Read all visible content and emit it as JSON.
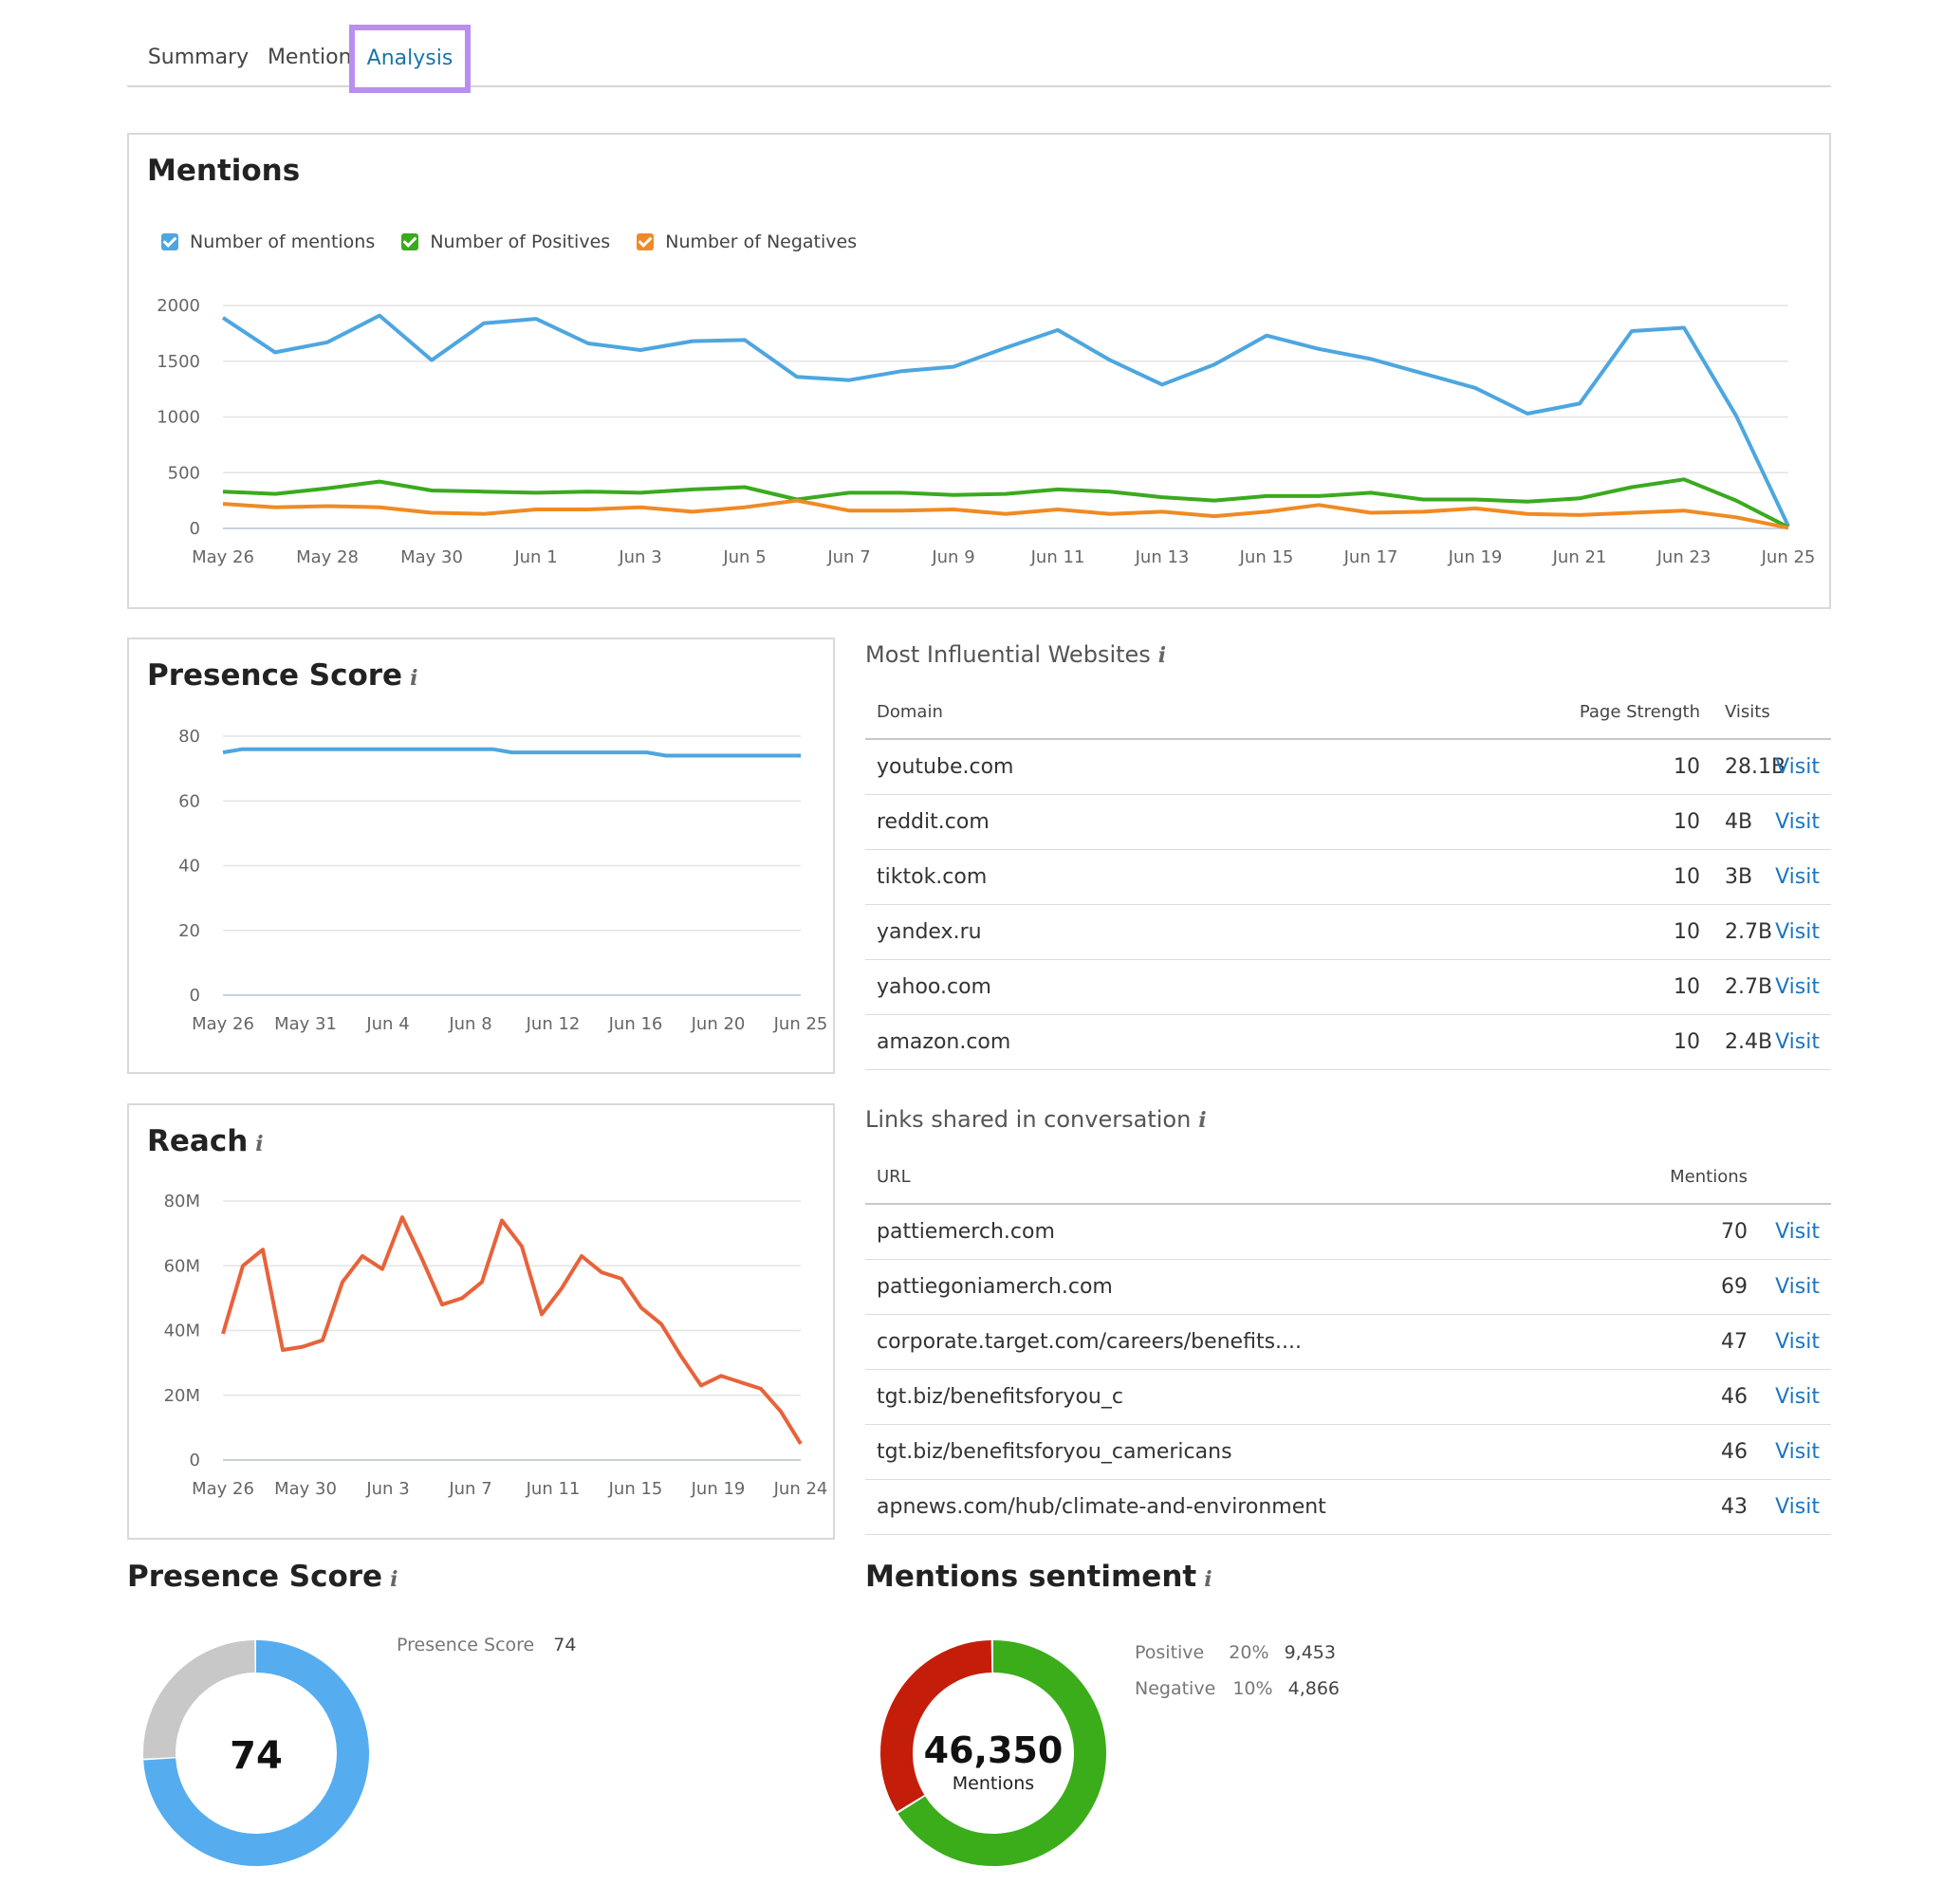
{
  "tabs": [
    {
      "label": "Summary"
    },
    {
      "label": "Mentions"
    },
    {
      "label": "Analysis",
      "active": true
    }
  ],
  "mentions_chart": {
    "title": "Mentions",
    "legend": [
      {
        "label": "Number of mentions",
        "color": "#4da6e0"
      },
      {
        "label": "Number of Positives",
        "color": "#3aaa1e"
      },
      {
        "label": "Number of Negatives",
        "color": "#f08a24"
      }
    ]
  },
  "presence_chart": {
    "title": "Presence Score"
  },
  "reach_chart": {
    "title": "Reach"
  },
  "influential": {
    "title": "Most Influential Websites",
    "headers": {
      "domain": "Domain",
      "strength": "Page Strength",
      "visits": "Visits"
    },
    "rows": [
      {
        "domain": "youtube.com",
        "strength": "10",
        "visits": "28.1B",
        "action": "Visit"
      },
      {
        "domain": "reddit.com",
        "strength": "10",
        "visits": "4B",
        "action": "Visit"
      },
      {
        "domain": "tiktok.com",
        "strength": "10",
        "visits": "3B",
        "action": "Visit"
      },
      {
        "domain": "yandex.ru",
        "strength": "10",
        "visits": "2.7B",
        "action": "Visit"
      },
      {
        "domain": "yahoo.com",
        "strength": "10",
        "visits": "2.7B",
        "action": "Visit"
      },
      {
        "domain": "amazon.com",
        "strength": "10",
        "visits": "2.4B",
        "action": "Visit"
      }
    ]
  },
  "links": {
    "title": "Links shared in conversation",
    "headers": {
      "url": "URL",
      "mentions": "Mentions"
    },
    "rows": [
      {
        "url": "pattiemerch.com",
        "mentions": "70",
        "action": "Visit"
      },
      {
        "url": "pattiegoniamerch.com",
        "mentions": "69",
        "action": "Visit"
      },
      {
        "url": "corporate.target.com/careers/benefits....",
        "mentions": "47",
        "action": "Visit"
      },
      {
        "url": "tgt.biz/benefitsforyou_c",
        "mentions": "46",
        "action": "Visit"
      },
      {
        "url": "tgt.biz/benefitsforyou_camericans",
        "mentions": "46",
        "action": "Visit"
      },
      {
        "url": "apnews.com/hub/climate-and-environment",
        "mentions": "43",
        "action": "Visit"
      }
    ]
  },
  "presence_donut": {
    "title": "Presence Score",
    "label": "Presence Score",
    "value": "74",
    "score": 74,
    "max": 100,
    "colors": {
      "fill": "#55adf0",
      "rest": "#c8c8c8"
    }
  },
  "sentiment": {
    "title": "Mentions sentiment",
    "total": "46,350",
    "total_label": "Mentions",
    "positive": {
      "label": "Positive",
      "pct": "20%",
      "count": "9,453",
      "value": 9453,
      "color": "#3bad1a"
    },
    "negative": {
      "label": "Negative",
      "pct": "10%",
      "count": "4,866",
      "value": 4866,
      "color": "#c41e0a"
    }
  },
  "chart_data": [
    {
      "type": "line",
      "title": "Mentions",
      "x": [
        "May 26",
        "May 27",
        "May 28",
        "May 29",
        "May 30",
        "May 31",
        "Jun 1",
        "Jun 2",
        "Jun 3",
        "Jun 4",
        "Jun 5",
        "Jun 6",
        "Jun 7",
        "Jun 8",
        "Jun 9",
        "Jun 10",
        "Jun 11",
        "Jun 12",
        "Jun 13",
        "Jun 14",
        "Jun 15",
        "Jun 16",
        "Jun 17",
        "Jun 18",
        "Jun 19",
        "Jun 20",
        "Jun 21",
        "Jun 22",
        "Jun 23",
        "Jun 24",
        "Jun 25"
      ],
      "x_ticks": [
        "May 26",
        "May 28",
        "May 30",
        "Jun 1",
        "Jun 3",
        "Jun 5",
        "Jun 7",
        "Jun 9",
        "Jun 11",
        "Jun 13",
        "Jun 15",
        "Jun 17",
        "Jun 19",
        "Jun 21",
        "Jun 23",
        "Jun 25"
      ],
      "ylim": [
        0,
        2000
      ],
      "y_ticks": [
        "0",
        "500",
        "1000",
        "1500",
        "2000"
      ],
      "grid": true,
      "series": [
        {
          "name": "Number of mentions",
          "color": "#4da6e0",
          "values": [
            1890,
            1580,
            1670,
            1910,
            1510,
            1840,
            1880,
            1660,
            1600,
            1680,
            1690,
            1360,
            1330,
            1410,
            1450,
            1620,
            1780,
            1510,
            1290,
            1470,
            1730,
            1610,
            1520,
            1390,
            1260,
            1030,
            1120,
            1770,
            1800,
            1010,
            20
          ]
        },
        {
          "name": "Number of Positives",
          "color": "#3aaa1e",
          "values": [
            330,
            310,
            360,
            420,
            340,
            330,
            320,
            330,
            320,
            350,
            370,
            260,
            320,
            320,
            300,
            310,
            350,
            330,
            280,
            250,
            290,
            290,
            320,
            260,
            260,
            240,
            270,
            370,
            440,
            250,
            10
          ]
        },
        {
          "name": "Number of Negatives",
          "color": "#f08a24",
          "values": [
            220,
            190,
            200,
            190,
            140,
            130,
            170,
            170,
            190,
            150,
            190,
            250,
            160,
            160,
            170,
            130,
            170,
            130,
            150,
            110,
            150,
            210,
            140,
            150,
            180,
            130,
            120,
            140,
            160,
            100,
            5
          ]
        }
      ]
    },
    {
      "type": "line",
      "title": "Presence Score",
      "x_ticks": [
        "May 26",
        "May 31",
        "Jun 4",
        "Jun 8",
        "Jun 12",
        "Jun 16",
        "Jun 20",
        "Jun 25"
      ],
      "ylim": [
        0,
        80
      ],
      "y_ticks": [
        "0",
        "20",
        "40",
        "60",
        "80"
      ],
      "grid": true,
      "series": [
        {
          "color": "#4da6e0",
          "values": [
            75,
            76,
            76,
            76,
            76,
            76,
            76,
            76,
            76,
            76,
            76,
            76,
            76,
            76,
            76,
            75,
            75,
            75,
            75,
            75,
            75,
            75,
            75,
            74,
            74,
            74,
            74,
            74,
            74,
            74,
            74
          ]
        }
      ]
    },
    {
      "type": "line",
      "title": "Reach",
      "x_ticks": [
        "May 26",
        "May 30",
        "Jun 3",
        "Jun 7",
        "Jun 11",
        "Jun 15",
        "Jun 19",
        "Jun 24"
      ],
      "ylim": [
        0,
        80000000
      ],
      "y_ticks": [
        "0",
        "20M",
        "40M",
        "60M",
        "80M"
      ],
      "grid": true,
      "series": [
        {
          "color": "#e8623a",
          "values": [
            39000000,
            60000000,
            65000000,
            34000000,
            35000000,
            37000000,
            55000000,
            63000000,
            59000000,
            75000000,
            62000000,
            48000000,
            50000000,
            55000000,
            74000000,
            66000000,
            45000000,
            53000000,
            63000000,
            58000000,
            56000000,
            47000000,
            42000000,
            32000000,
            23000000,
            26000000,
            24000000,
            22000000,
            15000000,
            5000000
          ]
        }
      ]
    }
  ]
}
